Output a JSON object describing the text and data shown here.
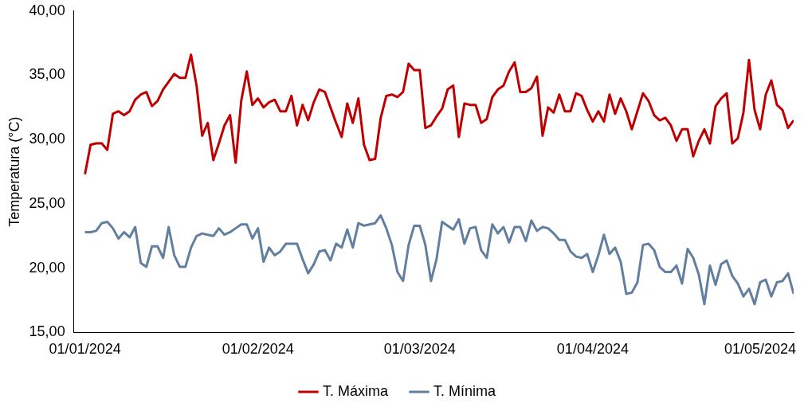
{
  "chart_data": {
    "type": "line",
    "ylabel": "Temperatura (°C)",
    "x": [
      "2024-01-01",
      "2024-01-02",
      "2024-01-03",
      "2024-01-04",
      "2024-01-05",
      "2024-01-06",
      "2024-01-07",
      "2024-01-08",
      "2024-01-09",
      "2024-01-10",
      "2024-01-11",
      "2024-01-12",
      "2024-01-13",
      "2024-01-14",
      "2024-01-15",
      "2024-01-16",
      "2024-01-17",
      "2024-01-18",
      "2024-01-19",
      "2024-01-20",
      "2024-01-21",
      "2024-01-22",
      "2024-01-23",
      "2024-01-24",
      "2024-01-25",
      "2024-01-26",
      "2024-01-27",
      "2024-01-28",
      "2024-01-29",
      "2024-01-30",
      "2024-01-31",
      "2024-02-01",
      "2024-02-02",
      "2024-02-03",
      "2024-02-04",
      "2024-02-05",
      "2024-02-06",
      "2024-02-07",
      "2024-02-08",
      "2024-02-09",
      "2024-02-10",
      "2024-02-11",
      "2024-02-12",
      "2024-02-13",
      "2024-02-14",
      "2024-02-15",
      "2024-02-16",
      "2024-02-17",
      "2024-02-18",
      "2024-02-19",
      "2024-02-20",
      "2024-02-21",
      "2024-02-22",
      "2024-02-23",
      "2024-02-24",
      "2024-02-25",
      "2024-02-26",
      "2024-02-27",
      "2024-02-28",
      "2024-02-29",
      "2024-03-01",
      "2024-03-02",
      "2024-03-03",
      "2024-03-04",
      "2024-03-05",
      "2024-03-06",
      "2024-03-07",
      "2024-03-08",
      "2024-03-09",
      "2024-03-10",
      "2024-03-11",
      "2024-03-12",
      "2024-03-13",
      "2024-03-14",
      "2024-03-15",
      "2024-03-16",
      "2024-03-17",
      "2024-03-18",
      "2024-03-19",
      "2024-03-20",
      "2024-03-21",
      "2024-03-22",
      "2024-03-23",
      "2024-03-24",
      "2024-03-25",
      "2024-03-26",
      "2024-03-27",
      "2024-03-28",
      "2024-03-29",
      "2024-03-30",
      "2024-03-31",
      "2024-04-01",
      "2024-04-02",
      "2024-04-03",
      "2024-04-04",
      "2024-04-05",
      "2024-04-06",
      "2024-04-07",
      "2024-04-08",
      "2024-04-09",
      "2024-04-10",
      "2024-04-11",
      "2024-04-12",
      "2024-04-13",
      "2024-04-14",
      "2024-04-15",
      "2024-04-16",
      "2024-04-17",
      "2024-04-18",
      "2024-04-19",
      "2024-04-20",
      "2024-04-21",
      "2024-04-22",
      "2024-04-23",
      "2024-04-24",
      "2024-04-25",
      "2024-04-26",
      "2024-04-27",
      "2024-04-28",
      "2024-04-29",
      "2024-04-30",
      "2024-05-01",
      "2024-05-02",
      "2024-05-03",
      "2024-05-04",
      "2024-05-05",
      "2024-05-06",
      "2024-05-07"
    ],
    "series": [
      {
        "name": "T. Máxima",
        "color": "#c00000",
        "values": [
          27.3,
          29.6,
          29.7,
          29.7,
          29.2,
          32.0,
          32.2,
          31.9,
          32.2,
          33.1,
          33.5,
          33.7,
          32.6,
          33.0,
          33.9,
          34.5,
          35.1,
          34.8,
          34.8,
          36.6,
          34.2,
          30.3,
          31.3,
          28.4,
          29.7,
          31.1,
          31.9,
          28.2,
          33.0,
          35.3,
          32.7,
          33.2,
          32.5,
          32.9,
          33.1,
          32.2,
          32.2,
          33.4,
          31.1,
          32.7,
          31.5,
          32.9,
          33.9,
          33.7,
          32.5,
          31.3,
          30.2,
          32.8,
          31.3,
          33.2,
          29.6,
          28.4,
          28.5,
          31.7,
          33.4,
          33.5,
          33.3,
          33.7,
          35.9,
          35.4,
          35.4,
          30.9,
          31.1,
          31.8,
          32.4,
          33.9,
          34.2,
          30.2,
          32.8,
          32.7,
          32.7,
          31.3,
          31.6,
          33.3,
          33.9,
          34.2,
          35.3,
          36.0,
          33.7,
          33.7,
          34.0,
          34.9,
          30.3,
          32.5,
          32.1,
          33.5,
          32.2,
          32.2,
          33.6,
          33.4,
          32.3,
          31.4,
          32.2,
          31.4,
          33.5,
          32.0,
          33.2,
          32.2,
          30.8,
          32.2,
          33.6,
          33.0,
          31.9,
          31.5,
          31.7,
          31.1,
          29.9,
          30.8,
          30.8,
          28.7,
          29.9,
          30.8,
          29.7,
          32.6,
          33.2,
          33.6,
          29.7,
          30.1,
          32.1,
          36.2,
          32.3,
          30.8,
          33.5,
          34.6,
          32.7,
          32.3,
          30.9,
          31.5
        ]
      },
      {
        "name": "T. Mínima",
        "color": "#627f9f",
        "values": [
          22.8,
          22.8,
          22.9,
          23.5,
          23.6,
          23.1,
          22.3,
          22.8,
          22.4,
          23.2,
          20.4,
          20.1,
          21.7,
          21.7,
          20.8,
          23.2,
          21.0,
          20.1,
          20.1,
          21.6,
          22.5,
          22.7,
          22.6,
          22.5,
          23.1,
          22.6,
          22.8,
          23.1,
          23.4,
          23.4,
          22.3,
          23.1,
          20.5,
          21.6,
          21.0,
          21.3,
          21.9,
          21.9,
          21.9,
          20.7,
          19.6,
          20.3,
          21.3,
          21.4,
          20.6,
          21.9,
          21.6,
          23.0,
          21.6,
          23.5,
          23.3,
          23.4,
          23.5,
          24.1,
          23.1,
          21.8,
          19.7,
          19.0,
          21.8,
          23.3,
          23.3,
          21.8,
          19.0,
          20.7,
          23.6,
          23.3,
          23.0,
          23.8,
          21.9,
          23.1,
          23.2,
          21.4,
          20.8,
          23.4,
          22.7,
          23.2,
          22.0,
          23.2,
          23.2,
          22.1,
          23.7,
          22.9,
          23.2,
          23.1,
          22.7,
          22.2,
          22.2,
          21.3,
          20.9,
          20.8,
          21.1,
          19.7,
          21.0,
          22.6,
          21.1,
          21.6,
          20.5,
          18.0,
          18.1,
          18.9,
          21.8,
          21.9,
          21.4,
          20.1,
          19.7,
          19.7,
          20.2,
          18.8,
          21.5,
          20.8,
          19.5,
          17.2,
          20.2,
          18.7,
          20.3,
          20.6,
          19.4,
          18.8,
          17.8,
          18.4,
          17.2,
          18.9,
          19.1,
          17.8,
          18.9,
          19.0,
          19.6,
          18.0
        ]
      }
    ],
    "xlim": [
      "2023-12-30",
      "2024-05-07"
    ],
    "xticks": [
      {
        "value": "2024-01-01",
        "label": "01/01/2024"
      },
      {
        "value": "2024-02-01",
        "label": "01/02/2024"
      },
      {
        "value": "2024-03-01",
        "label": "01/03/2024"
      },
      {
        "value": "2024-04-01",
        "label": "01/04/2024"
      },
      {
        "value": "2024-05-01",
        "label": "01/05/2024"
      }
    ],
    "ylim": [
      15,
      40
    ],
    "yticks": [
      {
        "value": 15,
        "label": "15,00"
      },
      {
        "value": 20,
        "label": "20,00"
      },
      {
        "value": 25,
        "label": "25,00"
      },
      {
        "value": 30,
        "label": "30,00"
      },
      {
        "value": 35,
        "label": "35,00"
      },
      {
        "value": 40,
        "label": "40,00"
      }
    ],
    "legend": "bottom",
    "marker": "none",
    "line_style": "solid"
  }
}
